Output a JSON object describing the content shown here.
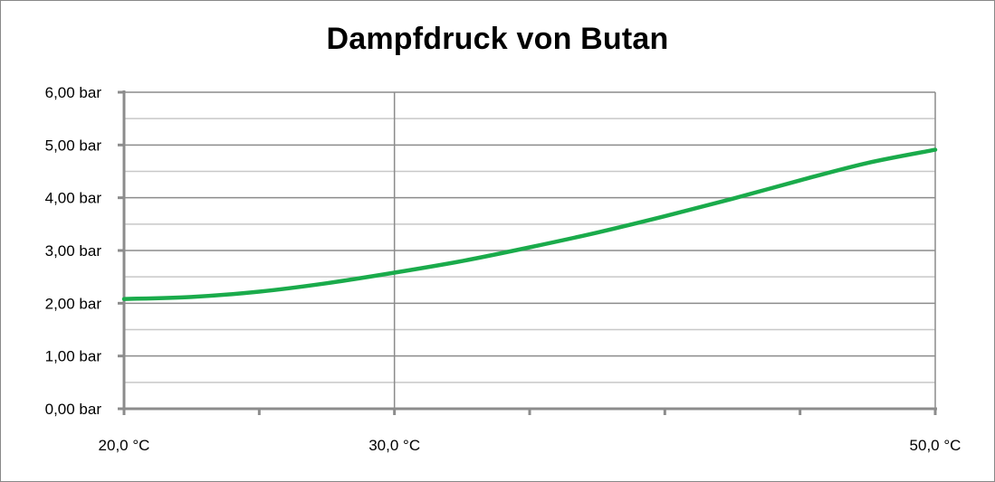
{
  "chart_data": {
    "type": "line",
    "title": "Dampfdruck von Butan",
    "xlabel": "",
    "ylabel": "",
    "x_unit": "°C",
    "y_unit": "bar",
    "xlim": [
      20.0,
      50.0
    ],
    "ylim": [
      0.0,
      6.0
    ],
    "x_ticks": [
      {
        "value": 20.0,
        "label": "20,0  °C"
      },
      {
        "value": 30.0,
        "label": "30,0  °C"
      },
      {
        "value": 50.0,
        "label": "50,0  °C"
      }
    ],
    "y_ticks": [
      {
        "value": 0,
        "label": "0,00  bar"
      },
      {
        "value": 1,
        "label": "1,00  bar"
      },
      {
        "value": 2,
        "label": "2,00  bar"
      },
      {
        "value": 3,
        "label": "3,00  bar"
      },
      {
        "value": 4,
        "label": "4,00  bar"
      },
      {
        "value": 5,
        "label": "5,00  bar"
      },
      {
        "value": 6,
        "label": "6,00  bar"
      }
    ],
    "y_minor_step": 0.5,
    "x_gridlines": [
      30.0
    ],
    "grid": true,
    "legend": "none",
    "series": [
      {
        "color": "#1aab4b",
        "x": [
          20,
          22.5,
          25,
          27.5,
          30,
          32.5,
          35,
          37.5,
          40,
          42.5,
          45,
          47.5,
          50
        ],
        "y": [
          2.08,
          2.12,
          2.22,
          2.38,
          2.58,
          2.8,
          3.06,
          3.34,
          3.65,
          3.98,
          4.33,
          4.66,
          4.91
        ]
      }
    ]
  }
}
